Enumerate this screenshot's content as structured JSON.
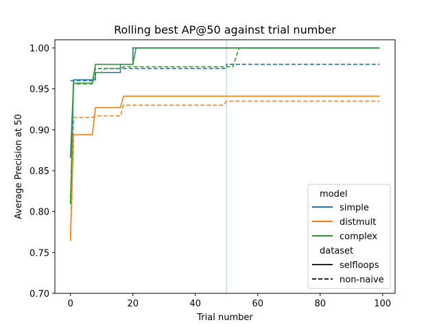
{
  "chart_data": {
    "type": "line",
    "title": "Rolling best AP@50 against trial number",
    "xlabel": "Trial number",
    "ylabel": "Average Precision at 50",
    "xlim": [
      -5,
      104
    ],
    "ylim": [
      0.7,
      1.01
    ],
    "xticks": [
      0,
      20,
      40,
      60,
      80,
      100
    ],
    "yticks": [
      0.7,
      0.75,
      0.8,
      0.85,
      0.9,
      0.95,
      1.0
    ],
    "ytick_labels": [
      "0.70",
      "0.75",
      "0.80",
      "0.85",
      "0.90",
      "0.95",
      "1.00"
    ],
    "grid": false,
    "vline": {
      "x": 50,
      "color": "#c8dde6"
    },
    "legend": {
      "placement": "lower-right",
      "model_title": "model",
      "dataset_title": "dataset",
      "models": [
        {
          "name": "simple",
          "color": "#1f77b4"
        },
        {
          "name": "distmult",
          "color": "#ff7f0e"
        },
        {
          "name": "complex",
          "color": "#2ca02c"
        }
      ],
      "datasets": [
        {
          "name": "selfloops",
          "style": "solid"
        },
        {
          "name": "non-naive",
          "style": "dashed"
        }
      ]
    },
    "series": [
      {
        "model": "simple",
        "dataset": "selfloops",
        "color": "#1f77b4",
        "dash": "solid",
        "points": [
          [
            0,
            0.866
          ],
          [
            1,
            0.961
          ],
          [
            8,
            0.961
          ],
          [
            8,
            0.97
          ],
          [
            16,
            0.97
          ],
          [
            16,
            0.98
          ],
          [
            20,
            0.98
          ],
          [
            20,
            1.0
          ],
          [
            99,
            1.0
          ]
        ]
      },
      {
        "model": "simple",
        "dataset": "non-naive",
        "color": "#1f77b4",
        "dash": "dashed",
        "points": [
          [
            0,
            0.96
          ],
          [
            1,
            0.96
          ],
          [
            7,
            0.96
          ],
          [
            8,
            0.975
          ],
          [
            50,
            0.975
          ],
          [
            50,
            0.98
          ],
          [
            99,
            0.98
          ]
        ]
      },
      {
        "model": "distmult",
        "dataset": "selfloops",
        "color": "#ff7f0e",
        "dash": "solid",
        "points": [
          [
            0,
            0.764
          ],
          [
            1,
            0.894
          ],
          [
            7,
            0.894
          ],
          [
            8,
            0.927
          ],
          [
            16,
            0.927
          ],
          [
            17,
            0.941
          ],
          [
            99,
            0.941
          ]
        ]
      },
      {
        "model": "distmult",
        "dataset": "non-naive",
        "color": "#ff7f0e",
        "dash": "dashed",
        "points": [
          [
            0,
            0.771
          ],
          [
            1,
            0.915
          ],
          [
            7,
            0.915
          ],
          [
            8,
            0.917
          ],
          [
            16,
            0.917
          ],
          [
            17,
            0.93
          ],
          [
            49,
            0.93
          ],
          [
            50,
            0.935
          ],
          [
            99,
            0.935
          ]
        ]
      },
      {
        "model": "complex",
        "dataset": "selfloops",
        "color": "#2ca02c",
        "dash": "solid",
        "points": [
          [
            0,
            0.812
          ],
          [
            1,
            0.957
          ],
          [
            7,
            0.957
          ],
          [
            8,
            0.98
          ],
          [
            20,
            0.98
          ],
          [
            21,
            1.0
          ],
          [
            99,
            1.0
          ]
        ]
      },
      {
        "model": "complex",
        "dataset": "non-naive",
        "color": "#2ca02c",
        "dash": "dashed",
        "points": [
          [
            0,
            0.809
          ],
          [
            1,
            0.956
          ],
          [
            7,
            0.956
          ],
          [
            8,
            0.97
          ],
          [
            10,
            0.97
          ],
          [
            11,
            0.975
          ],
          [
            16,
            0.975
          ],
          [
            17,
            0.977
          ],
          [
            52,
            0.977
          ],
          [
            54,
            1.0
          ],
          [
            99,
            1.0
          ]
        ]
      }
    ]
  }
}
